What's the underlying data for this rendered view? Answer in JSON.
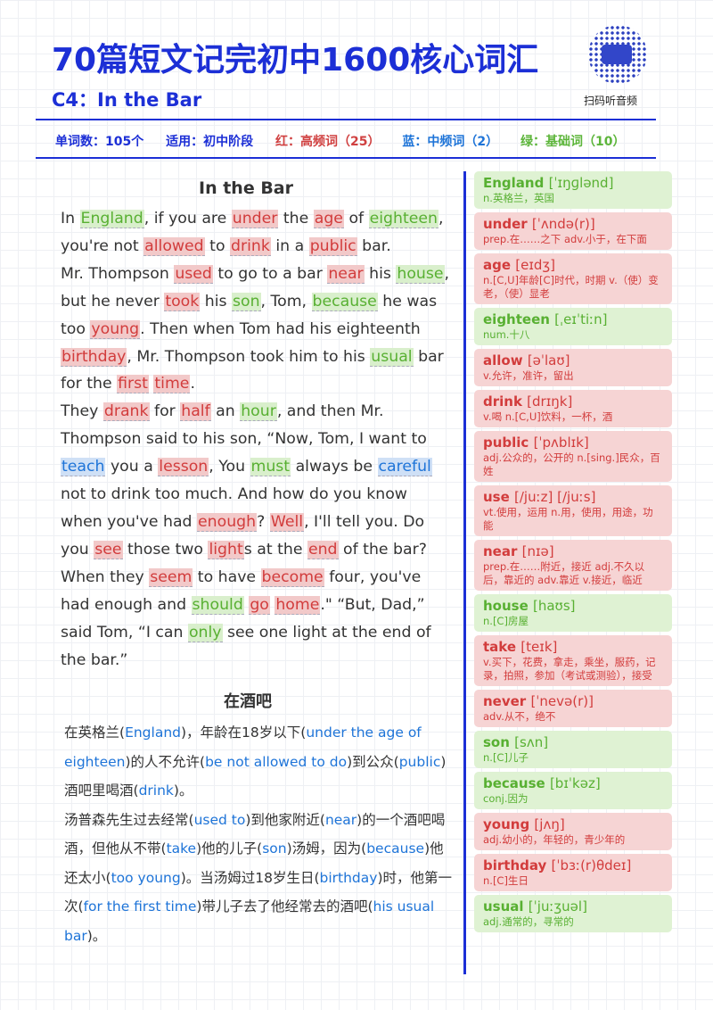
{
  "header": {
    "title": "70篇短文记完初中1600核心词汇",
    "subtitle": "C4：In the Bar",
    "qr_caption": "扫码听音频"
  },
  "info": {
    "word_count": "单词数：105个",
    "level": "适用：初中阶段",
    "red": "红：高频词（25）",
    "blue": "蓝：中频词（2）",
    "green": "绿：基础词（10）"
  },
  "colors": {
    "title": "#1c2fd6",
    "red": "#d23c3c",
    "blue": "#1e74d8",
    "green": "#58b032"
  },
  "story": {
    "title": "In the Bar",
    "paragraphs": [
      [
        {
          "t": "In "
        },
        {
          "t": "England",
          "c": "g"
        },
        {
          "t": ", if you are "
        },
        {
          "t": "under",
          "c": "r"
        },
        {
          "t": " the "
        },
        {
          "t": "age",
          "c": "r"
        },
        {
          "t": " of "
        },
        {
          "t": "eighteen",
          "c": "g"
        },
        {
          "t": ", you're not "
        },
        {
          "t": "allowed",
          "c": "r"
        },
        {
          "t": " to "
        },
        {
          "t": "drink",
          "c": "r"
        },
        {
          "t": " in a "
        },
        {
          "t": "public",
          "c": "r"
        },
        {
          "t": " bar."
        }
      ],
      [
        {
          "t": "Mr. Thompson "
        },
        {
          "t": "used",
          "c": "r"
        },
        {
          "t": " to go to a bar "
        },
        {
          "t": "near",
          "c": "r"
        },
        {
          "t": " his "
        },
        {
          "t": "house",
          "c": "g"
        },
        {
          "t": ", but he never "
        },
        {
          "t": "took",
          "c": "r"
        },
        {
          "t": " his "
        },
        {
          "t": "son",
          "c": "g"
        },
        {
          "t": ", Tom, "
        },
        {
          "t": "because",
          "c": "g"
        },
        {
          "t": " he was too "
        },
        {
          "t": "young",
          "c": "r"
        },
        {
          "t": ". Then when Tom had his eighteenth "
        },
        {
          "t": "birthday",
          "c": "r"
        },
        {
          "t": ", Mr. Thompson took him to his "
        },
        {
          "t": "usual",
          "c": "g"
        },
        {
          "t": " bar for the "
        },
        {
          "t": "first",
          "c": "r"
        },
        {
          "t": " "
        },
        {
          "t": "time",
          "c": "r"
        },
        {
          "t": "."
        }
      ],
      [
        {
          "t": "They "
        },
        {
          "t": "drank",
          "c": "r"
        },
        {
          "t": " for "
        },
        {
          "t": "half",
          "c": "r"
        },
        {
          "t": " an "
        },
        {
          "t": "hour",
          "c": "g"
        },
        {
          "t": ", and then Mr. Thompson said to his son, “Now, Tom, I want to "
        },
        {
          "t": "teach",
          "c": "b"
        },
        {
          "t": " you a "
        },
        {
          "t": "lesson",
          "c": "r"
        },
        {
          "t": ", You "
        },
        {
          "t": "must",
          "c": "g"
        },
        {
          "t": " always be "
        },
        {
          "t": "careful",
          "c": "b"
        },
        {
          "t": " not to drink too much. And how do you know when you've had "
        },
        {
          "t": "enough",
          "c": "r"
        },
        {
          "t": "? "
        },
        {
          "t": "Well",
          "c": "r"
        },
        {
          "t": ", I'll tell you. Do you "
        },
        {
          "t": "see",
          "c": "r"
        },
        {
          "t": " those two "
        },
        {
          "t": "light",
          "c": "r"
        },
        {
          "t": "s at the "
        },
        {
          "t": "end",
          "c": "r"
        },
        {
          "t": " of the bar? When they "
        },
        {
          "t": "seem",
          "c": "r"
        },
        {
          "t": " to have "
        },
        {
          "t": "become",
          "c": "r"
        },
        {
          "t": " four, you've had enough and "
        },
        {
          "t": "should",
          "c": "g"
        },
        {
          "t": " "
        },
        {
          "t": "go",
          "c": "r"
        },
        {
          "t": " "
        },
        {
          "t": "home",
          "c": "r"
        },
        {
          "t": ".\"  “But, Dad,” said Tom, “I can "
        },
        {
          "t": "only",
          "c": "g"
        },
        {
          "t": " see one light at the end of the bar.”"
        }
      ]
    ]
  },
  "translation": {
    "title": "在酒吧",
    "paragraphs": [
      [
        {
          "t": "在英格兰("
        },
        {
          "t": "England",
          "b": 1
        },
        {
          "t": ")，年龄在18岁以下("
        },
        {
          "t": "under the age of eighteen",
          "b": 1
        },
        {
          "t": ")的人不允许("
        },
        {
          "t": "be not allowed to do",
          "b": 1
        },
        {
          "t": ")到公众("
        },
        {
          "t": "public",
          "b": 1
        },
        {
          "t": ")酒吧里喝酒("
        },
        {
          "t": "drink",
          "b": 1
        },
        {
          "t": ")。"
        }
      ],
      [
        {
          "t": "汤普森先生过去经常("
        },
        {
          "t": "used to",
          "b": 1
        },
        {
          "t": ")到他家附近("
        },
        {
          "t": "near",
          "b": 1
        },
        {
          "t": ")的一个酒吧喝酒，但他从不带("
        },
        {
          "t": "take",
          "b": 1
        },
        {
          "t": ")他的儿子("
        },
        {
          "t": "son",
          "b": 1
        },
        {
          "t": ")汤姆，因为("
        },
        {
          "t": "because",
          "b": 1
        },
        {
          "t": ")他还太小("
        },
        {
          "t": "too young",
          "b": 1
        },
        {
          "t": ")。当汤姆过18岁生日("
        },
        {
          "t": "birthday",
          "b": 1
        },
        {
          "t": ")时，他第一次("
        },
        {
          "t": "for the first time",
          "b": 1
        },
        {
          "t": ")带儿子去了他经常去的酒吧("
        },
        {
          "t": "his usual bar",
          "b": 1
        },
        {
          "t": ")。"
        }
      ]
    ]
  },
  "vocab": [
    {
      "word": "England",
      "phon": "[ˈɪŋɡlənd]",
      "def": "n.英格兰，英国",
      "level": "green"
    },
    {
      "word": "under",
      "phon": "[ˈʌndə(r)]",
      "def": "prep.在……之下 adv.小于，在下面",
      "level": "red"
    },
    {
      "word": "age",
      "phon": "[eɪdʒ]",
      "def": "n.[C,U]年龄[C]时代，时期 v.（使）变老，（使）显老",
      "level": "red"
    },
    {
      "word": "eighteen",
      "phon": "[ˌeɪˈtiːn]",
      "def": "num.十八",
      "level": "green"
    },
    {
      "word": "allow",
      "phon": "[əˈlaʊ]",
      "def": "v.允许，准许，留出",
      "level": "red"
    },
    {
      "word": "drink",
      "phon": "[drɪŋk]",
      "def": "v.喝 n.[C,U]饮料，一杯，酒",
      "level": "red"
    },
    {
      "word": "public",
      "phon": "[ˈpʌblɪk]",
      "def": "adj.公众的，公开的 n.[sing.]民众，百姓",
      "level": "red"
    },
    {
      "word": "use",
      "phon": "[/juːz] [/juːs]",
      "def": "vt.使用，运用 n.用，使用，用途，功能",
      "level": "red"
    },
    {
      "word": "near",
      "phon": "[nɪə]",
      "def": "prep.在……附近，接近 adj.不久以后，靠近的 adv.靠近 v.接近，临近",
      "level": "red"
    },
    {
      "word": "house",
      "phon": "[haʊs]",
      "def": "n.[C]房屋",
      "level": "green"
    },
    {
      "word": "take",
      "phon": "[teɪk]",
      "def": "v.买下，花费，拿走，乘坐，服药，记录，拍照，参加（考试或测验），接受",
      "level": "red"
    },
    {
      "word": "never",
      "phon": "[ˈnevə(r)]",
      "def": "adv.从不，绝不",
      "level": "red"
    },
    {
      "word": "son",
      "phon": "[sʌn]",
      "def": "n.[C]儿子",
      "level": "green"
    },
    {
      "word": "because",
      "phon": "[bɪˈkəz]",
      "def": "conj.因为",
      "level": "green"
    },
    {
      "word": "young",
      "phon": "[jʌŋ]",
      "def": "adj.幼小的，年轻的，青少年的",
      "level": "red"
    },
    {
      "word": "birthday",
      "phon": "[ˈbɜː(r)θdeɪ]",
      "def": "n.[C]生日",
      "level": "red"
    },
    {
      "word": "usual",
      "phon": "[ˈjuːʒuəl]",
      "def": "adj.通常的，寻常的",
      "level": "green"
    }
  ]
}
